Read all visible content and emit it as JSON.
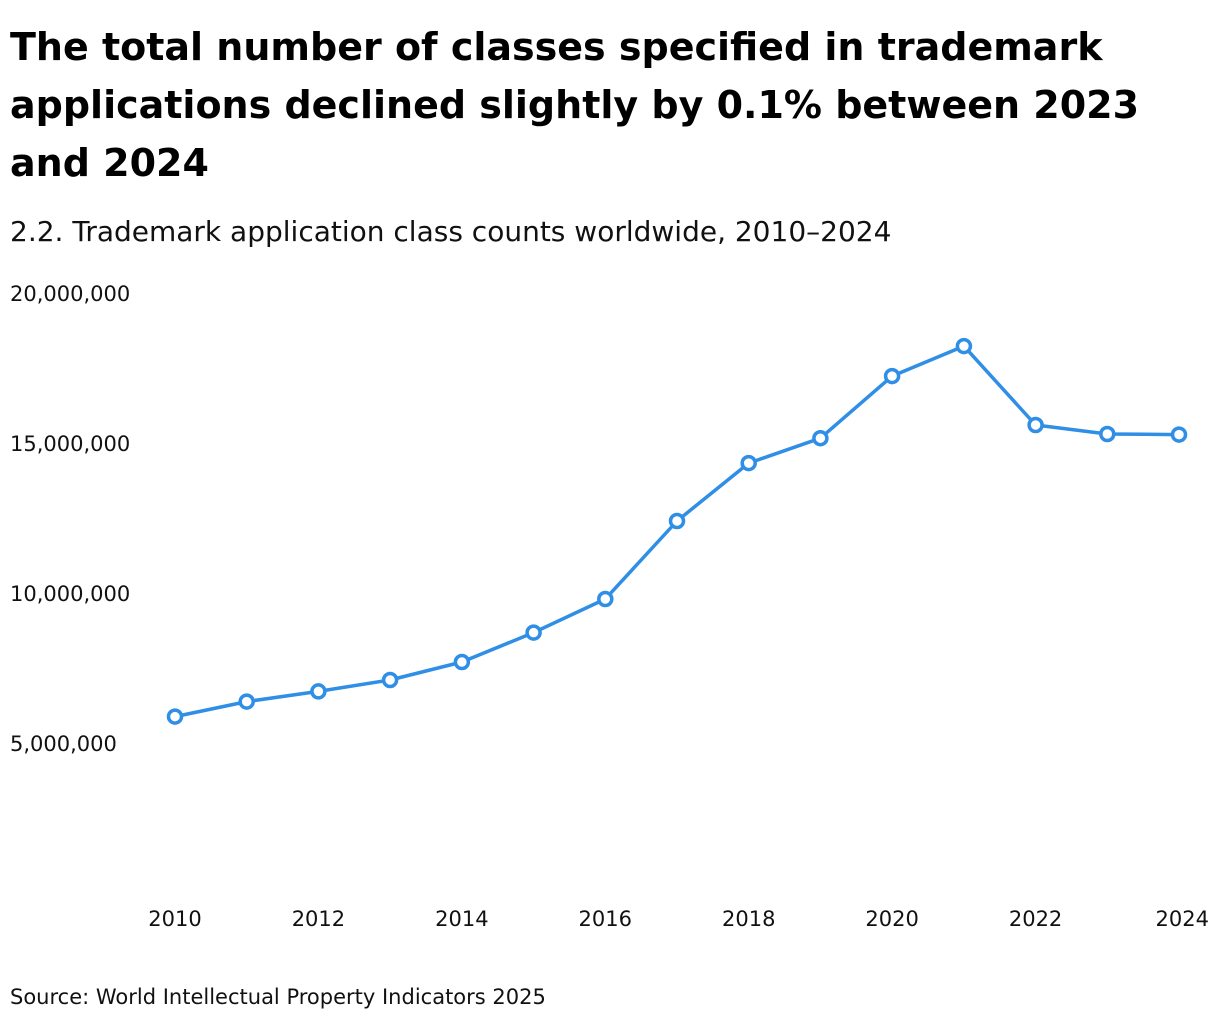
{
  "title": "The total number of classes specified in trademark applications declined slightly by 0.1% between 2023 and 2024",
  "subtitle": "2.2. Trademark application class counts worldwide, 2010–2024",
  "source": "Source: World Intellectual Property Indicators 2025",
  "colors": {
    "series": "#2f8ee5",
    "marker_fill": "#ffffff",
    "text": "#111111"
  },
  "chart_data": {
    "type": "line",
    "title": "2.2. Trademark application class counts worldwide, 2010–2024",
    "xlabel": "",
    "ylabel": "",
    "x": [
      2010,
      2011,
      2012,
      2013,
      2014,
      2015,
      2016,
      2017,
      2018,
      2019,
      2020,
      2021,
      2022,
      2023,
      2024
    ],
    "x_ticks": [
      "2010",
      "2012",
      "2014",
      "2016",
      "2018",
      "2020",
      "2022",
      "2024"
    ],
    "x_tick_values": [
      2010,
      2012,
      2014,
      2016,
      2018,
      2020,
      2022,
      2024
    ],
    "y_ticks": [
      "5,000,000",
      "10,000,000",
      "15,000,000",
      "20,000,000"
    ],
    "y_tick_values": [
      5000000,
      10000000,
      15000000,
      20000000
    ],
    "ylim": [
      0,
      20000000
    ],
    "grid": false,
    "legend": "none",
    "series": [
      {
        "values": [
          5880000,
          6380000,
          6720000,
          7100000,
          7700000,
          8680000,
          9800000,
          12400000,
          14330000,
          15160000,
          17230000,
          18230000,
          15600000,
          15300000,
          15280000
        ]
      }
    ]
  }
}
